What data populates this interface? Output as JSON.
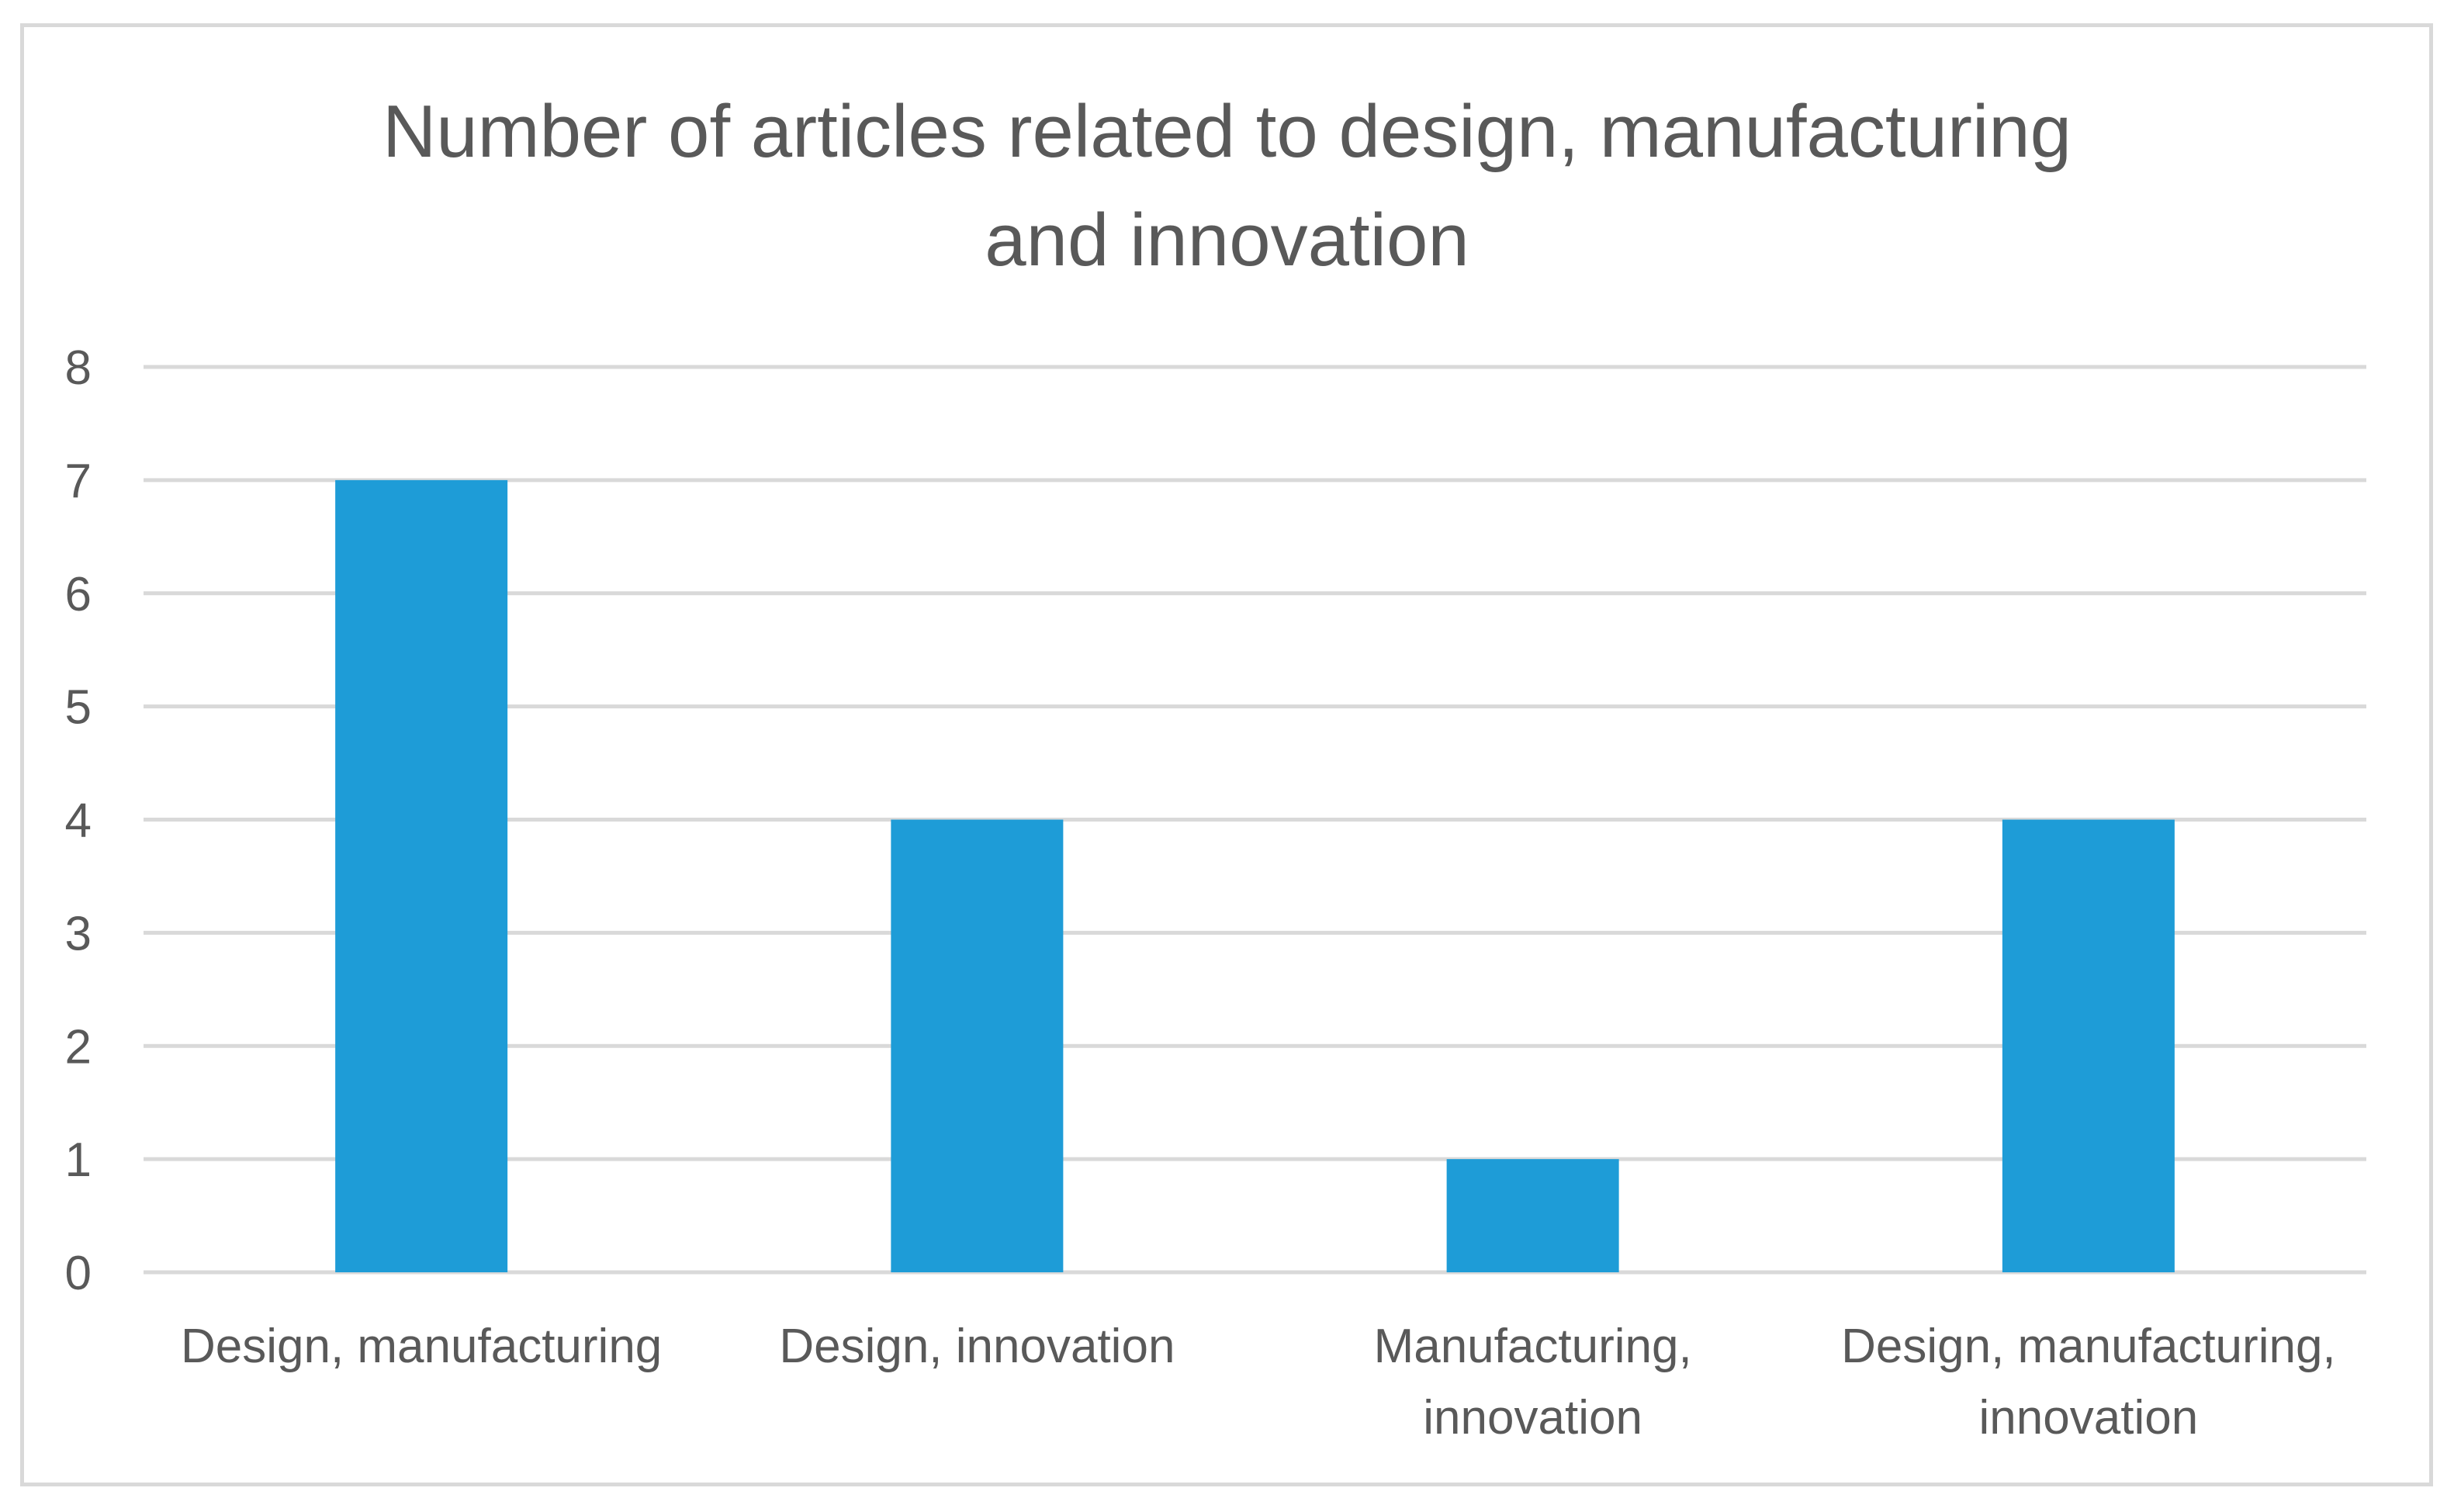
{
  "chart_data": {
    "type": "bar",
    "title": "Number of articles related to design, manufacturing and innovation",
    "title_lines": [
      "Number of articles related to design, manufacturing",
      "and innovation"
    ],
    "categories": [
      "Design, manufacturing",
      "Design, innovation",
      "Manufacturing, innovation",
      "Design, manufacturing, innovation"
    ],
    "category_lines": [
      [
        "Design, manufacturing"
      ],
      [
        "Design, innovation"
      ],
      [
        "Manufacturing,",
        "innovation"
      ],
      [
        "Design, manufacturing,",
        "innovation"
      ]
    ],
    "values": [
      7,
      4,
      1,
      4
    ],
    "ylim": [
      0,
      8
    ],
    "yticks": [
      0,
      1,
      2,
      3,
      4,
      5,
      6,
      7,
      8
    ],
    "xlabel": "",
    "ylabel": "",
    "grid": true,
    "legend": "none",
    "colors": {
      "bar": "#1e9cd7",
      "grid": "#d9d9d9",
      "text": "#595959",
      "border": "#d9d9d9"
    }
  }
}
